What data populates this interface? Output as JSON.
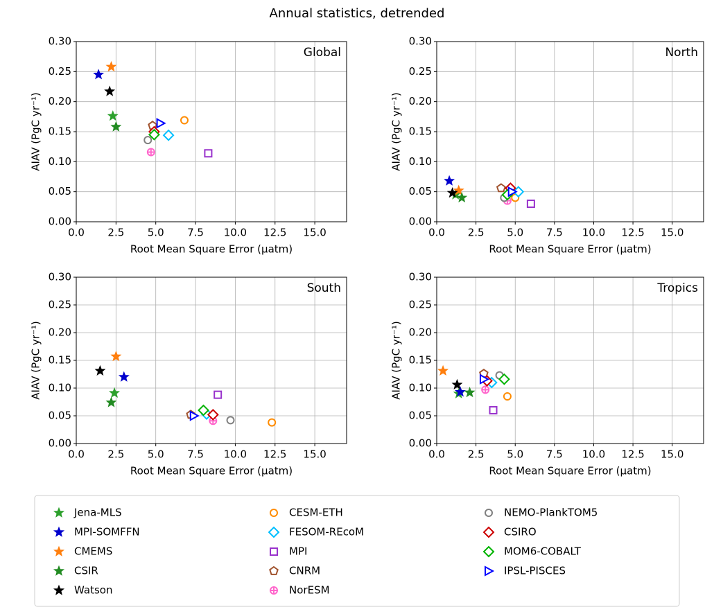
{
  "title": "Annual statistics, detrended",
  "chart_data": [
    {
      "type": "scatter",
      "title": "Global",
      "xlabel": "Root Mean Square Error (μatm)",
      "ylabel": "AIAV (PgC yr⁻¹)",
      "xlim": [
        0,
        17
      ],
      "ylim": [
        0,
        0.3
      ],
      "xticks": [
        {
          "value": 0,
          "label": "0.0"
        },
        2.5,
        {
          "value": 5,
          "label": "5.0"
        },
        7.5,
        {
          "value": 10,
          "label": "10.0"
        },
        12.5,
        {
          "value": 15,
          "label": "15.0"
        }
      ],
      "yticks": [
        {
          "value": 0,
          "label": "0.00"
        },
        {
          "value": 0.05,
          "label": "0.05"
        },
        {
          "value": 0.1,
          "label": "0.10"
        },
        {
          "value": 0.15,
          "label": "0.15"
        },
        {
          "value": 0.2,
          "label": "0.20"
        },
        {
          "value": 0.25,
          "label": "0.25"
        },
        {
          "value": 0.3,
          "label": "0.30"
        }
      ],
      "grid": true,
      "series": [
        {
          "name": "Jena-MLS",
          "color": "#2ca02c",
          "marker": "star",
          "x": [
            2.3
          ],
          "y": [
            0.176
          ]
        },
        {
          "name": "MPI-SOMFFN",
          "color": "#0000cd",
          "marker": "star",
          "x": [
            1.4
          ],
          "y": [
            0.245
          ]
        },
        {
          "name": "CMEMS",
          "color": "#ff7f0e",
          "marker": "star",
          "x": [
            2.2
          ],
          "y": [
            0.258
          ]
        },
        {
          "name": "CSIR",
          "color": "#228b22",
          "marker": "star",
          "x": [
            2.5
          ],
          "y": [
            0.158
          ]
        },
        {
          "name": "Watson",
          "color": "#000000",
          "marker": "star",
          "x": [
            2.1
          ],
          "y": [
            0.217
          ]
        },
        {
          "name": "CESM-ETH",
          "color": "#ff8c00",
          "marker": "circle",
          "x": [
            6.8
          ],
          "y": [
            0.169
          ]
        },
        {
          "name": "FESOM-REcoM",
          "color": "#00bfff",
          "marker": "diamond",
          "x": [
            5.8
          ],
          "y": [
            0.144
          ]
        },
        {
          "name": "MPI",
          "color": "#9932cc",
          "marker": "square",
          "x": [
            8.3
          ],
          "y": [
            0.114
          ]
        },
        {
          "name": "CNRM",
          "color": "#a0522d",
          "marker": "pentagon",
          "x": [
            4.8
          ],
          "y": [
            0.16
          ]
        },
        {
          "name": "NorESM",
          "color": "#ff66cc",
          "marker": "crosscircle",
          "x": [
            4.7
          ],
          "y": [
            0.116
          ]
        },
        {
          "name": "NEMO-PlankTOM5",
          "color": "#808080",
          "marker": "circle",
          "x": [
            4.5
          ],
          "y": [
            0.136
          ]
        },
        {
          "name": "CSIRO",
          "color": "#cc0000",
          "marker": "diamond",
          "x": [
            4.9
          ],
          "y": [
            0.15
          ]
        },
        {
          "name": "MOM6-COBALT",
          "color": "#00b300",
          "marker": "diamond",
          "x": [
            4.9
          ],
          "y": [
            0.145
          ]
        },
        {
          "name": "IPSL-PISCES",
          "color": "#0000ff",
          "marker": "triangle",
          "x": [
            5.3
          ],
          "y": [
            0.164
          ]
        }
      ]
    },
    {
      "type": "scatter",
      "title": "North",
      "xlabel": "Root Mean Square Error (μatm)",
      "ylabel": "AIAV (PgC yr⁻¹)",
      "xlim": [
        0,
        17
      ],
      "ylim": [
        0,
        0.3
      ],
      "xticks": [
        {
          "value": 0,
          "label": "0.0"
        },
        2.5,
        {
          "value": 5,
          "label": "5.0"
        },
        7.5,
        {
          "value": 10,
          "label": "10.0"
        },
        12.5,
        {
          "value": 15,
          "label": "15.0"
        }
      ],
      "yticks": [
        {
          "value": 0,
          "label": "0.00"
        },
        {
          "value": 0.05,
          "label": "0.05"
        },
        {
          "value": 0.1,
          "label": "0.10"
        },
        {
          "value": 0.15,
          "label": "0.15"
        },
        {
          "value": 0.2,
          "label": "0.20"
        },
        {
          "value": 0.25,
          "label": "0.25"
        },
        {
          "value": 0.3,
          "label": "0.30"
        }
      ],
      "grid": true,
      "series": [
        {
          "name": "Jena-MLS",
          "color": "#2ca02c",
          "marker": "star",
          "x": [
            1.2
          ],
          "y": [
            0.045
          ]
        },
        {
          "name": "MPI-SOMFFN",
          "color": "#0000cd",
          "marker": "star",
          "x": [
            0.8
          ],
          "y": [
            0.068
          ]
        },
        {
          "name": "CMEMS",
          "color": "#ff7f0e",
          "marker": "star",
          "x": [
            1.4
          ],
          "y": [
            0.052
          ]
        },
        {
          "name": "CSIR",
          "color": "#228b22",
          "marker": "star",
          "x": [
            1.6
          ],
          "y": [
            0.04
          ]
        },
        {
          "name": "Watson",
          "color": "#000000",
          "marker": "star",
          "x": [
            1.0
          ],
          "y": [
            0.048
          ]
        },
        {
          "name": "CESM-ETH",
          "color": "#ff8c00",
          "marker": "circle",
          "x": [
            5.0
          ],
          "y": [
            0.04
          ]
        },
        {
          "name": "FESOM-REcoM",
          "color": "#00bfff",
          "marker": "diamond",
          "x": [
            5.2
          ],
          "y": [
            0.05
          ]
        },
        {
          "name": "MPI",
          "color": "#9932cc",
          "marker": "square",
          "x": [
            6.0
          ],
          "y": [
            0.03
          ]
        },
        {
          "name": "CNRM",
          "color": "#a0522d",
          "marker": "pentagon",
          "x": [
            4.1
          ],
          "y": [
            0.056
          ]
        },
        {
          "name": "NorESM",
          "color": "#ff66cc",
          "marker": "crosscircle",
          "x": [
            4.5
          ],
          "y": [
            0.035
          ]
        },
        {
          "name": "NEMO-PlankTOM5",
          "color": "#808080",
          "marker": "circle",
          "x": [
            4.3
          ],
          "y": [
            0.04
          ]
        },
        {
          "name": "CSIRO",
          "color": "#cc0000",
          "marker": "diamond",
          "x": [
            4.7
          ],
          "y": [
            0.056
          ]
        },
        {
          "name": "MOM6-COBALT",
          "color": "#00b300",
          "marker": "diamond",
          "x": [
            4.5
          ],
          "y": [
            0.045
          ]
        },
        {
          "name": "IPSL-PISCES",
          "color": "#0000ff",
          "marker": "triangle",
          "x": [
            4.8
          ],
          "y": [
            0.05
          ]
        }
      ]
    },
    {
      "type": "scatter",
      "title": "South",
      "xlabel": "Root Mean Square Error (μatm)",
      "ylabel": "AIAV (PgC yr⁻¹)",
      "xlim": [
        0,
        17
      ],
      "ylim": [
        0,
        0.3
      ],
      "xticks": [
        {
          "value": 0,
          "label": "0.0"
        },
        2.5,
        {
          "value": 5,
          "label": "5.0"
        },
        7.5,
        {
          "value": 10,
          "label": "10.0"
        },
        12.5,
        {
          "value": 15,
          "label": "15.0"
        }
      ],
      "yticks": [
        {
          "value": 0,
          "label": "0.00"
        },
        {
          "value": 0.05,
          "label": "0.05"
        },
        {
          "value": 0.1,
          "label": "0.10"
        },
        {
          "value": 0.15,
          "label": "0.15"
        },
        {
          "value": 0.2,
          "label": "0.20"
        },
        {
          "value": 0.25,
          "label": "0.25"
        },
        {
          "value": 0.3,
          "label": "0.30"
        }
      ],
      "grid": true,
      "series": [
        {
          "name": "Jena-MLS",
          "color": "#2ca02c",
          "marker": "star",
          "x": [
            2.4
          ],
          "y": [
            0.091
          ]
        },
        {
          "name": "MPI-SOMFFN",
          "color": "#0000cd",
          "marker": "star",
          "x": [
            3.0
          ],
          "y": [
            0.12
          ]
        },
        {
          "name": "CMEMS",
          "color": "#ff7f0e",
          "marker": "star",
          "x": [
            2.5
          ],
          "y": [
            0.157
          ]
        },
        {
          "name": "CSIR",
          "color": "#228b22",
          "marker": "star",
          "x": [
            2.2
          ],
          "y": [
            0.074
          ]
        },
        {
          "name": "Watson",
          "color": "#000000",
          "marker": "star",
          "x": [
            1.5
          ],
          "y": [
            0.131
          ]
        },
        {
          "name": "CESM-ETH",
          "color": "#ff8c00",
          "marker": "circle",
          "x": [
            12.3
          ],
          "y": [
            0.038
          ]
        },
        {
          "name": "FESOM-REcoM",
          "color": "#00bfff",
          "marker": "diamond",
          "x": [
            8.2
          ],
          "y": [
            0.053
          ]
        },
        {
          "name": "MPI",
          "color": "#9932cc",
          "marker": "square",
          "x": [
            8.9
          ],
          "y": [
            0.088
          ]
        },
        {
          "name": "CNRM",
          "color": "#a0522d",
          "marker": "pentagon",
          "x": [
            7.2
          ],
          "y": [
            0.052
          ]
        },
        {
          "name": "NorESM",
          "color": "#ff66cc",
          "marker": "crosscircle",
          "x": [
            8.6
          ],
          "y": [
            0.041
          ]
        },
        {
          "name": "NEMO-PlankTOM5",
          "color": "#808080",
          "marker": "circle",
          "x": [
            9.7
          ],
          "y": [
            0.042
          ]
        },
        {
          "name": "CSIRO",
          "color": "#cc0000",
          "marker": "diamond",
          "x": [
            8.6
          ],
          "y": [
            0.052
          ]
        },
        {
          "name": "MOM6-COBALT",
          "color": "#00b300",
          "marker": "diamond",
          "x": [
            8.0
          ],
          "y": [
            0.06
          ]
        },
        {
          "name": "IPSL-PISCES",
          "color": "#0000ff",
          "marker": "triangle",
          "x": [
            7.4
          ],
          "y": [
            0.05
          ]
        }
      ]
    },
    {
      "type": "scatter",
      "title": "Tropics",
      "xlabel": "Root Mean Square Error (μatm)",
      "ylabel": "AIAV (PgC yr⁻¹)",
      "xlim": [
        0,
        17
      ],
      "ylim": [
        0,
        0.3
      ],
      "xticks": [
        {
          "value": 0,
          "label": "0.0"
        },
        2.5,
        {
          "value": 5,
          "label": "5.0"
        },
        7.5,
        {
          "value": 10,
          "label": "10.0"
        },
        12.5,
        {
          "value": 15,
          "label": "15.0"
        }
      ],
      "yticks": [
        {
          "value": 0,
          "label": "0.00"
        },
        {
          "value": 0.05,
          "label": "0.05"
        },
        {
          "value": 0.1,
          "label": "0.10"
        },
        {
          "value": 0.15,
          "label": "0.15"
        },
        {
          "value": 0.2,
          "label": "0.20"
        },
        {
          "value": 0.25,
          "label": "0.25"
        },
        {
          "value": 0.3,
          "label": "0.30"
        }
      ],
      "grid": true,
      "series": [
        {
          "name": "Jena-MLS",
          "color": "#2ca02c",
          "marker": "star",
          "x": [
            1.4
          ],
          "y": [
            0.09
          ]
        },
        {
          "name": "MPI-SOMFFN",
          "color": "#0000cd",
          "marker": "star",
          "x": [
            1.5
          ],
          "y": [
            0.093
          ]
        },
        {
          "name": "CMEMS",
          "color": "#ff7f0e",
          "marker": "star",
          "x": [
            0.4
          ],
          "y": [
            0.131
          ]
        },
        {
          "name": "CSIR",
          "color": "#228b22",
          "marker": "star",
          "x": [
            2.1
          ],
          "y": [
            0.092
          ]
        },
        {
          "name": "Watson",
          "color": "#000000",
          "marker": "star",
          "x": [
            1.3
          ],
          "y": [
            0.106
          ]
        },
        {
          "name": "CESM-ETH",
          "color": "#ff8c00",
          "marker": "circle",
          "x": [
            4.5
          ],
          "y": [
            0.085
          ]
        },
        {
          "name": "FESOM-REcoM",
          "color": "#00bfff",
          "marker": "diamond",
          "x": [
            3.5
          ],
          "y": [
            0.11
          ]
        },
        {
          "name": "MPI",
          "color": "#9932cc",
          "marker": "square",
          "x": [
            3.6
          ],
          "y": [
            0.06
          ]
        },
        {
          "name": "CNRM",
          "color": "#a0522d",
          "marker": "pentagon",
          "x": [
            3.0
          ],
          "y": [
            0.126
          ]
        },
        {
          "name": "NorESM",
          "color": "#ff66cc",
          "marker": "crosscircle",
          "x": [
            3.1
          ],
          "y": [
            0.097
          ]
        },
        {
          "name": "NEMO-PlankTOM5",
          "color": "#808080",
          "marker": "circle",
          "x": [
            4.0
          ],
          "y": [
            0.123
          ]
        },
        {
          "name": "CSIRO",
          "color": "#cc0000",
          "marker": "diamond",
          "x": [
            3.2
          ],
          "y": [
            0.113
          ]
        },
        {
          "name": "MOM6-COBALT",
          "color": "#00b300",
          "marker": "diamond",
          "x": [
            4.3
          ],
          "y": [
            0.116
          ]
        },
        {
          "name": "IPSL-PISCES",
          "color": "#0000ff",
          "marker": "triangle",
          "x": [
            3.0
          ],
          "y": [
            0.116
          ]
        }
      ]
    }
  ]
}
